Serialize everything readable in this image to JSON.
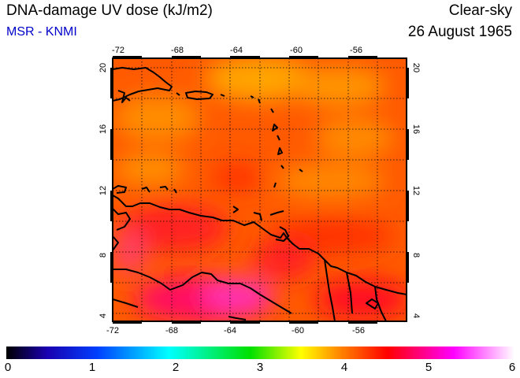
{
  "header": {
    "title": "DNA-damage UV dose (kJ/m2)",
    "source": "MSR - KNMI",
    "condition": "Clear-sky",
    "date": "26 August 1965"
  },
  "colors": {
    "source_text": "#0000cc",
    "frame": "#000000",
    "coast": "#000000",
    "grid": "#000000"
  },
  "map": {
    "lon_range": [
      -72,
      -52
    ],
    "lat_range": [
      4,
      20.5
    ],
    "grid": "dotted, every 2 degrees",
    "lon_ticks": [
      "-72",
      "-68",
      "-64",
      "-60",
      "-56"
    ],
    "lat_ticks": [
      "20",
      "16",
      "12",
      "8",
      "4"
    ]
  },
  "colorbar": {
    "min": 0,
    "max": 6,
    "tick_labels": [
      "0",
      "1",
      "2",
      "3",
      "4",
      "5",
      "6"
    ],
    "stops": [
      "#000000",
      "#1a00b0",
      "#0040ff",
      "#00ffff",
      "#00e000",
      "#ffff00",
      "#ff8000",
      "#ff0000",
      "#ff00ff",
      "#ffffff"
    ]
  }
}
